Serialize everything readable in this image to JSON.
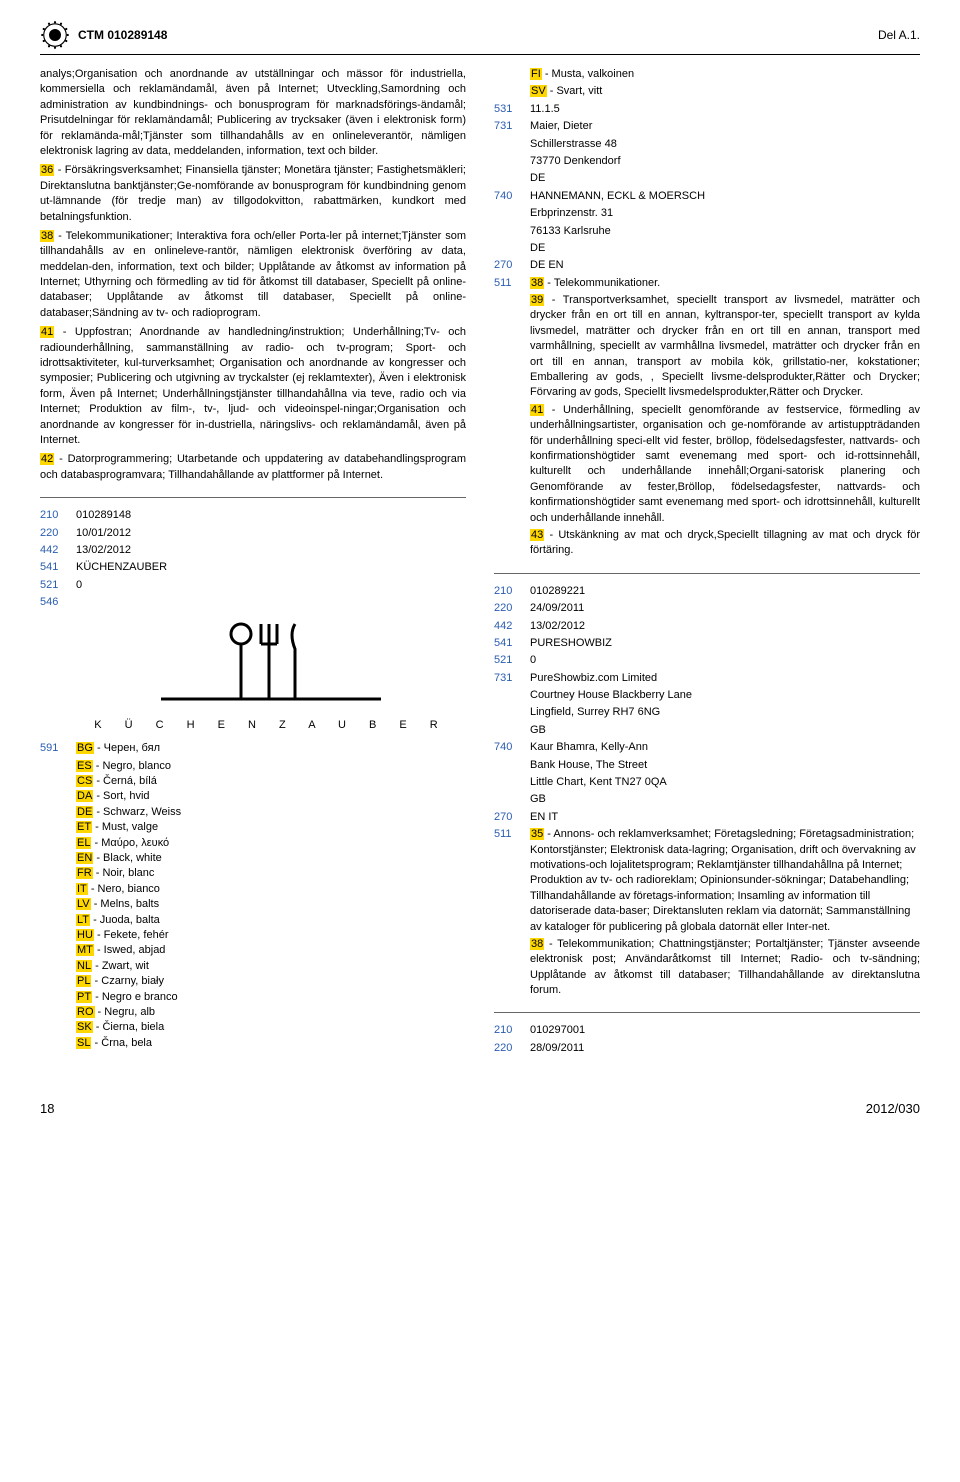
{
  "header": {
    "ctm": "CTM 010289148",
    "del": "Del A.1."
  },
  "left_top": {
    "intro": "analys;Organisation och anordnande av utställningar och mässor för industriella, kommersiella och reklamändamål, även på Internet; Utveckling,Samordning och administration av kundbindnings- och bonusprogram för marknadsförings-ändamål; Prisutdelningar för reklamändamål; Publicering av trycksaker (även i elektronisk form) för reklamända-mål;Tjänster som tillhandahålls av en onlineleverantör, nämligen elektronisk lagring av data, meddelanden, information, text och bilder.",
    "s36_label": "36",
    "s36": " - Försäkringsverksamhet; Finansiella tjänster; Monetära tjänster; Fastighetsmäkleri; Direktanslutna banktjänster;Ge-nomförande av bonusprogram för kundbindning genom ut-lämnande (för tredje man) av tillgodokvitton, rabattmärken, kundkort med betalningsfunktion.",
    "s38_label": "38",
    "s38": " - Telekommunikationer; Interaktiva fora och/eller Porta-ler på internet;Tjänster som tillhandahålls av en onlineleve-rantör, nämligen elektronisk överföring av data, meddelan-den, information, text och bilder; Upplåtande av åtkomst av information på Internet; Uthyrning och förmedling av tid för åtkomst till databaser, Speciellt på online-databaser; Upplåtande av åtkomst till databaser, Speciellt på online-databaser;Sändning av tv- och radioprogram.",
    "s41_label": "41",
    "s41": " - Uppfostran; Anordnande av handledning/instruktion; Underhållning;Tv- och radiounderhållning, sammanställning av radio- och tv-program; Sport- och idrottsaktiviteter, kul-turverksamhet; Organisation och anordnande av kongresser och symposier; Publicering och utgivning av tryckalster (ej reklamtexter), Även i elektronisk form, Även på Internet; Underhållningstjänster tillhandahållna via teve, radio och via Internet; Produktion av film-, tv-, ljud- och videoinspel-ningar;Organisation och anordnande av kongresser för in-dustriella, näringslivs- och reklamändamål, även på Internet.",
    "s42_label": "42",
    "s42": " - Datorprogrammering; Utarbetande och uppdatering av databehandlingsprogram och databasprogramvara; Tillhandahållande av plattformer på Internet."
  },
  "right_top": {
    "fi_label": "FI",
    "fi": " - Musta, valkoinen",
    "sv_label": "SV",
    "sv": " - Svart, vitt",
    "n531": "531",
    "v531": "11.1.5",
    "n731": "731",
    "v731": "Maier, Dieter",
    "addr1": "Schillerstrasse 48",
    "addr2": "73770 Denkendorf",
    "addr3": "DE",
    "n740": "740",
    "v740": "HANNEMANN, ECKL & MOERSCH",
    "rep1": "Erbprinzenstr. 31",
    "rep2": "76133 Karlsruhe",
    "rep3": "DE",
    "n270": "270",
    "v270": "DE EN",
    "n511": "511",
    "s38_label": "38",
    "s38": " - Telekommunikationer.",
    "s39_label": "39",
    "s39": " - Transportverksamhet, speciellt transport av livsmedel, maträtter och drycker från en ort till en annan, kyltranspor-ter, speciellt transport av kylda livsmedel, maträtter och drycker från en ort till en annan, transport med varmhållning, speciellt av varmhållna livsmedel, maträtter och drycker från en ort till en annan, transport av mobila kök, grillstatio-ner, kokstationer; Emballering av gods, , Speciellt livsme-delsprodukter,Rätter och Drycker; Förvaring av gods, Speciellt livsmedelsprodukter,Rätter och Drycker.",
    "s41_label": "41",
    "s41": " - Underhållning, speciellt genomförande av festservice, förmedling av underhållningsartister, organisation och ge-nomförande av artistuppträdanden för underhållning speci-ellt vid fester, bröllop, födelsedagsfester, nattvards- och konfirmationshögtider samt evenemang med sport- och id-rottsinnehåll, kulturellt och underhållande innehåll;Organi-satorisk planering och Genomförande av fester,Bröllop, födelsedagsfester, nattvards- och konfirmationshögtider samt evenemang med sport- och idrottsinnehåll, kulturellt och underhållande innehåll.",
    "s43_label": "43",
    "s43": " - Utskänkning av mat och dryck,Speciellt tillagning av mat och dryck för förtäring."
  },
  "left_bottom": {
    "n210": "210",
    "v210": "010289148",
    "n220": "220",
    "v220": "10/01/2012",
    "n442": "442",
    "v442": "13/02/2012",
    "n541": "541",
    "v541": "KÜCHENZAUBER",
    "n521": "521",
    "v521": "0",
    "n546": "546",
    "n591": "591",
    "letters": "K Ü C H E N Z A U B E R",
    "colors": [
      {
        "code": "BG",
        "text": " - Черен, бял"
      },
      {
        "code": "ES",
        "text": " - Negro, blanco"
      },
      {
        "code": "CS",
        "text": " - Černá, bílá"
      },
      {
        "code": "DA",
        "text": " - Sort, hvid"
      },
      {
        "code": "DE",
        "text": " - Schwarz, Weiss"
      },
      {
        "code": "ET",
        "text": " - Must, valge"
      },
      {
        "code": "EL",
        "text": " - Μαύρο, λευκό"
      },
      {
        "code": "EN",
        "text": " - Black, white"
      },
      {
        "code": "FR",
        "text": " - Noir, blanc"
      },
      {
        "code": "IT",
        "text": " - Nero, bianco"
      },
      {
        "code": "LV",
        "text": " - Melns, balts"
      },
      {
        "code": "LT",
        "text": " - Juoda, balta"
      },
      {
        "code": "HU",
        "text": " - Fekete, fehér"
      },
      {
        "code": "MT",
        "text": " - Iswed, abjad"
      },
      {
        "code": "NL",
        "text": " - Zwart, wit"
      },
      {
        "code": "PL",
        "text": " - Czarny, biały"
      },
      {
        "code": "PT",
        "text": " - Negro e branco"
      },
      {
        "code": "RO",
        "text": " - Negru, alb"
      },
      {
        "code": "SK",
        "text": " - Čierna, biela"
      },
      {
        "code": "SL",
        "text": " - Črna, bela"
      }
    ]
  },
  "right_bottom": {
    "rec1": {
      "n210": "210",
      "v210": "010289221",
      "n220": "220",
      "v220": "24/09/2011",
      "n442": "442",
      "v442": "13/02/2012",
      "n541": "541",
      "v541": "PURESHOWBIZ",
      "n521": "521",
      "v521": "0",
      "n731": "731",
      "v731": "PureShowbiz.com Limited",
      "addr1": "Courtney House Blackberry Lane",
      "addr2": "Lingfield, Surrey RH7 6NG",
      "addr3": "GB",
      "n740": "740",
      "v740": "Kaur Bhamra, Kelly-Ann",
      "rep1": "Bank House, The Street",
      "rep2": "Little Chart, Kent TN27 0QA",
      "rep3": "GB",
      "n270": "270",
      "v270": "EN IT",
      "n511": "511",
      "s35_label": "35",
      "s35": " - Annons- och reklamverksamhet; Företagsledning; Företagsadministration; Kontorstjänster; Elektronisk data-lagring; Organisation, drift och övervakning av motivations-och lojalitetsprogram; Reklamtjänster tillhandahållna på Internet; Produktion av tv- och radioreklam; Opinionsunder-sökningar; Databehandling; Tillhandahållande av företags-information; Insamling av information till datoriserade data-baser; Direktansluten reklam via datornät; Sammanställning av kataloger för publicering på globala datornät eller Inter-net.",
      "s38_label": "38",
      "s38": " - Telekommunikation; Chattningstjänster; Portaltjänster; Tjänster avseende elektronisk post; Användaråtkomst till Internet; Radio- och tv-sändning; Upplåtande av åtkomst till databaser; Tillhandahållande av direktanslutna forum."
    },
    "rec2": {
      "n210": "210",
      "v210": "010297001",
      "n220": "220",
      "v220": "28/09/2011"
    }
  },
  "footer": {
    "page": "18",
    "issue": "2012/030"
  }
}
